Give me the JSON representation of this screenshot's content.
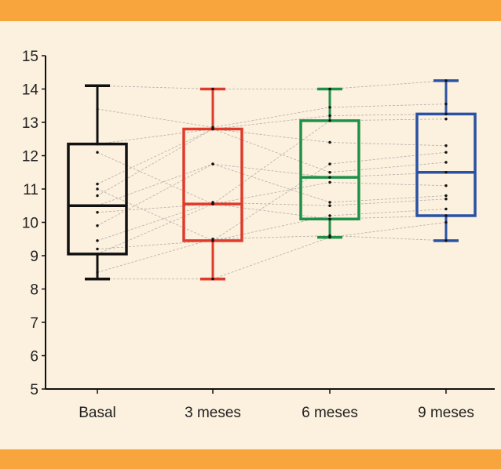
{
  "colors": {
    "banner": "#f7a53c",
    "background": "#fcf0de"
  },
  "chart_data": {
    "type": "box",
    "title": "",
    "xlabel": "",
    "ylabel": "",
    "ylim": [
      5,
      15
    ],
    "yticks": [
      5,
      6,
      7,
      8,
      9,
      10,
      11,
      12,
      13,
      14,
      15
    ],
    "categories": [
      "Basal",
      "3 meses",
      "6 meses",
      "9 meses"
    ],
    "colors": [
      "#111111",
      "#e03a2a",
      "#1e9148",
      "#2a52a4"
    ],
    "boxes": [
      {
        "name": "Basal",
        "min": 8.3,
        "q1": 9.05,
        "median": 10.5,
        "q3": 12.35,
        "max": 14.1
      },
      {
        "name": "3 meses",
        "min": 8.3,
        "q1": 9.45,
        "median": 10.55,
        "q3": 12.8,
        "max": 14.0
      },
      {
        "name": "6 meses",
        "min": 9.55,
        "q1": 10.1,
        "median": 11.35,
        "q3": 13.05,
        "max": 14.0
      },
      {
        "name": "9 meses",
        "min": 9.45,
        "q1": 10.2,
        "median": 11.5,
        "q3": 13.25,
        "max": 14.25
      }
    ],
    "points": [
      [
        8.3,
        8.3,
        9.55,
        10.0
      ],
      [
        8.5,
        9.5,
        9.6,
        9.45
      ],
      [
        9.05,
        10.55,
        10.1,
        10.2
      ],
      [
        9.2,
        9.45,
        10.2,
        10.4
      ],
      [
        9.45,
        10.6,
        10.5,
        10.7
      ],
      [
        9.9,
        11.75,
        10.6,
        10.8
      ],
      [
        10.3,
        10.55,
        11.2,
        11.1
      ],
      [
        10.5,
        11.75,
        11.35,
        11.5
      ],
      [
        10.8,
        12.8,
        11.5,
        11.8
      ],
      [
        11.0,
        9.45,
        11.75,
        12.1
      ],
      [
        11.15,
        12.8,
        12.4,
        12.3
      ],
      [
        12.1,
        10.55,
        13.05,
        13.1
      ],
      [
        12.35,
        12.8,
        13.2,
        13.25
      ],
      [
        13.4,
        12.85,
        13.45,
        13.55
      ],
      [
        14.1,
        14.0,
        14.0,
        14.25
      ]
    ]
  }
}
